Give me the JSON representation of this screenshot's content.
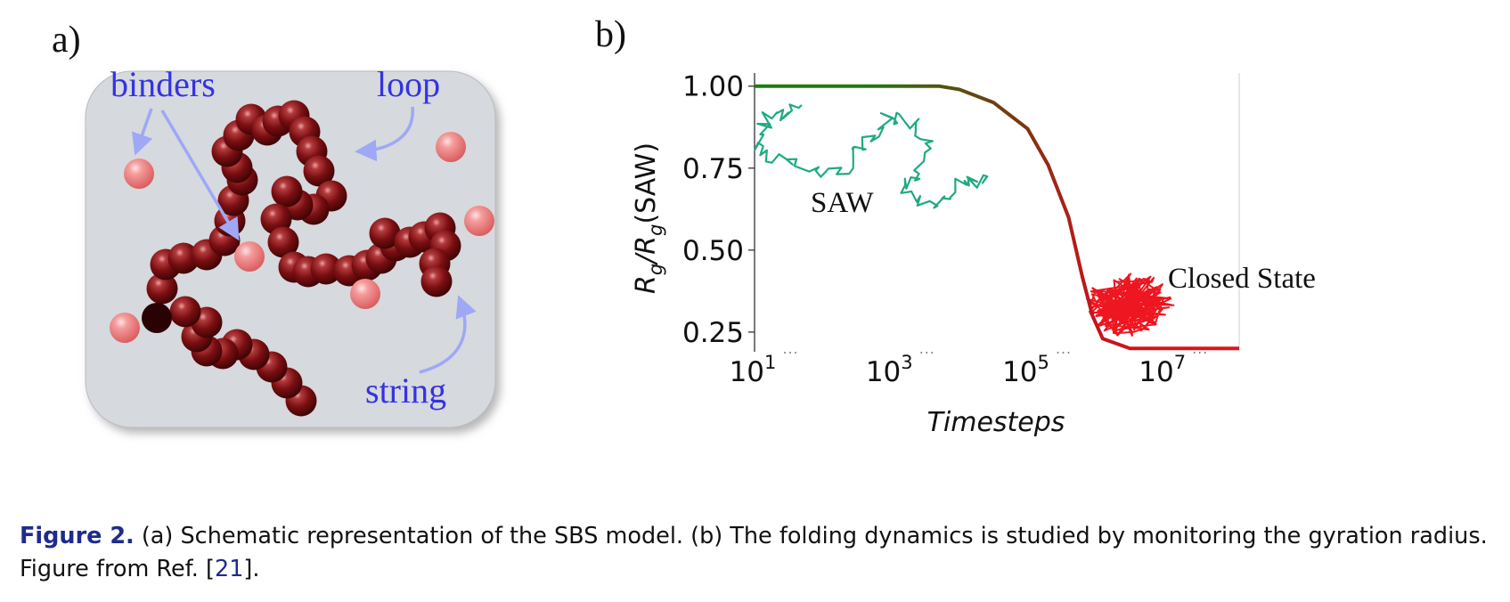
{
  "panel_a": {
    "label": "a)",
    "labels": {
      "binders": "binders",
      "loop": "loop",
      "string": "string"
    },
    "colors": {
      "box": "#d6d9dd",
      "bead": "#7a0f12",
      "binder": "#ee7f80",
      "annotation": "#3433e3",
      "arrow": "#9ea8f6"
    }
  },
  "panel_b": {
    "label": "b)",
    "annotations": {
      "saw": "SAW",
      "closed": "Closed State"
    },
    "colors": {
      "start": "#1b7d12",
      "end": "#e2141b",
      "saw": "#1faa82",
      "closed": "#ee1620"
    }
  },
  "chart_data": {
    "type": "line",
    "xlabel": "Timesteps",
    "ylabel_parts": {
      "main": "R",
      "sub": "g",
      "slash": "/R",
      "sub2": "g",
      "tail": "(SAW)"
    },
    "xscale": "log",
    "xlim_exp": [
      1,
      8.1
    ],
    "ylim": [
      0.19,
      1.04
    ],
    "xticks": [
      {
        "base": "10",
        "exp": "1",
        "value": 1
      },
      {
        "base": "10",
        "exp": "3",
        "value": 3
      },
      {
        "base": "10",
        "exp": "5",
        "value": 5
      },
      {
        "base": "10",
        "exp": "7",
        "value": 7
      }
    ],
    "yticks": [
      {
        "label": "1.00",
        "value": 1.0
      },
      {
        "label": "0.75",
        "value": 0.75
      },
      {
        "label": "0.50",
        "value": 0.5
      },
      {
        "label": "0.25",
        "value": 0.25
      }
    ],
    "series": [
      {
        "x_log10": [
          1,
          2,
          3,
          3.5,
          3.7,
          4,
          4.5,
          5,
          5.3,
          5.6,
          5.8,
          5.95,
          6.1,
          6.5,
          7,
          7.5,
          8.1
        ],
        "values": [
          1.0,
          1.0,
          1.0,
          1.0,
          1.0,
          0.99,
          0.95,
          0.87,
          0.76,
          0.6,
          0.42,
          0.3,
          0.23,
          0.2,
          0.2,
          0.2,
          0.2
        ]
      }
    ]
  },
  "caption": {
    "figure_label": "Figure 2.",
    "line1_text": " (a) Schematic representation of the SBS model. (b) The folding dynamics is studied by monitoring the gyration radius.",
    "line2_pre": "Figure from Ref. [",
    "ref_number": "21",
    "line2_post": "]."
  }
}
